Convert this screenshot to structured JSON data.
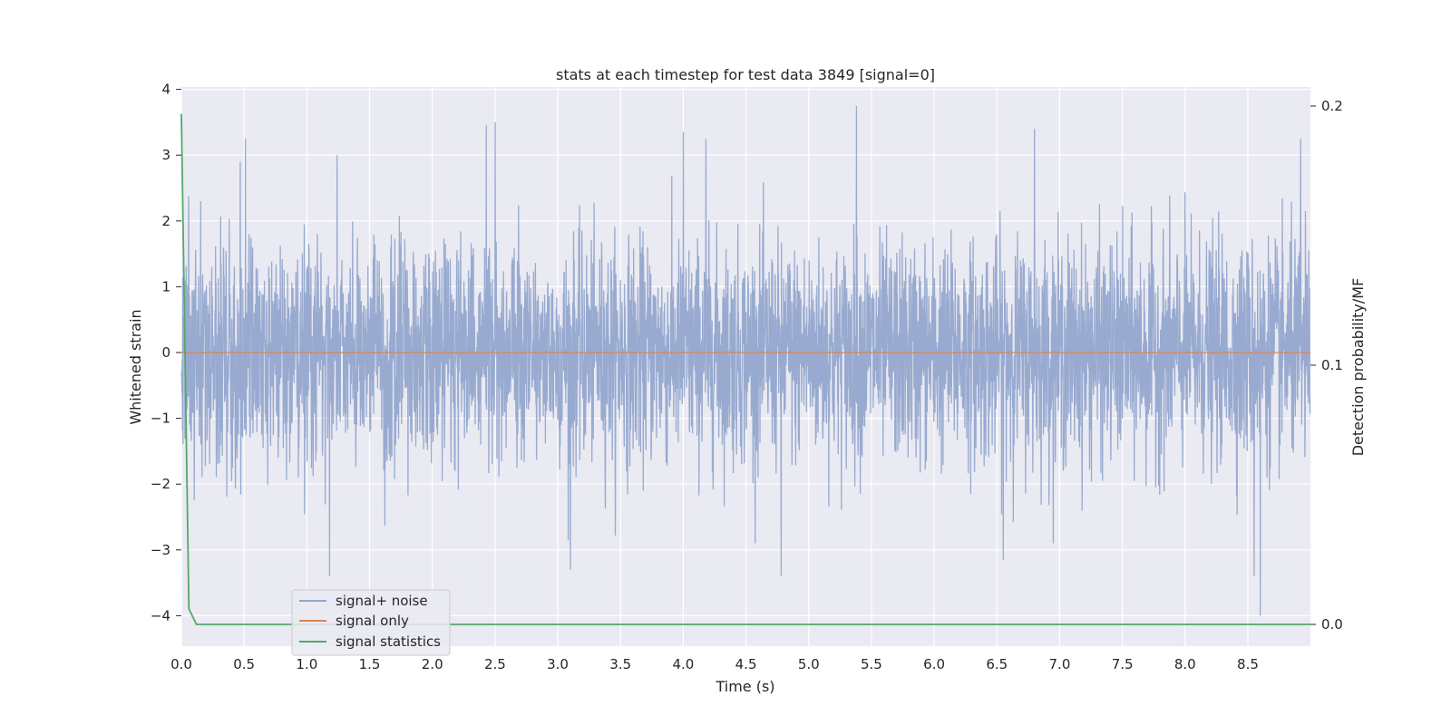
{
  "chart_data": {
    "type": "line",
    "title": "stats at each timestep for test data 3849 [signal=0]",
    "xlabel": "Time (s)",
    "ylabel": "Whitened strain",
    "y2label": "Detection probability/MF",
    "xlim": [
      0.0,
      9.0
    ],
    "ylim": [
      -4.35,
      4.1
    ],
    "y2lim": [
      -0.009,
      0.21
    ],
    "xticks": [
      "0.0",
      "0.5",
      "1.0",
      "1.5",
      "2.0",
      "2.5",
      "3.0",
      "3.5",
      "4.0",
      "4.5",
      "5.0",
      "5.5",
      "6.0",
      "6.5",
      "7.0",
      "7.5",
      "8.0",
      "8.5"
    ],
    "yticks": [
      "4",
      "3",
      "2",
      "1",
      "0",
      "−1",
      "−2",
      "−3",
      "−4"
    ],
    "y2ticks": [
      "0.2",
      "0.1",
      "0.0"
    ],
    "grid": true,
    "legend_position": "lower-left",
    "series": [
      {
        "name": "signal+ noise",
        "color": "#93a6cd",
        "axis": "left",
        "description_values": "dense noise, approx. mean 0, std 0.8",
        "peaks": [
          {
            "x": 0.47,
            "y": 2.9
          },
          {
            "x": 0.51,
            "y": 3.25
          },
          {
            "x": 1.24,
            "y": 3.0
          },
          {
            "x": 2.43,
            "y": 3.45
          },
          {
            "x": 2.5,
            "y": 3.5
          },
          {
            "x": 4.0,
            "y": 3.35
          },
          {
            "x": 4.18,
            "y": 3.25
          },
          {
            "x": 5.38,
            "y": 3.75
          },
          {
            "x": 6.8,
            "y": 3.4
          },
          {
            "x": 8.92,
            "y": 3.25
          },
          {
            "x": 1.18,
            "y": -3.4
          },
          {
            "x": 3.1,
            "y": -3.3
          },
          {
            "x": 4.78,
            "y": -3.4
          },
          {
            "x": 6.55,
            "y": -3.15
          },
          {
            "x": 8.55,
            "y": -3.4
          },
          {
            "x": 8.6,
            "y": -4.0
          }
        ]
      },
      {
        "name": "signal only",
        "color": "#dd8452",
        "axis": "left",
        "x": [
          0.0,
          9.0
        ],
        "y": [
          0.0,
          0.0
        ]
      },
      {
        "name": "signal statistics",
        "color": "#55a868",
        "axis": "right",
        "x": [
          0.0,
          0.06,
          0.12,
          0.5,
          1.0,
          3.0,
          6.0,
          9.0
        ],
        "y": [
          0.197,
          0.006,
          0.0,
          0.0,
          0.0,
          0.0,
          0.0,
          0.0
        ]
      }
    ]
  }
}
